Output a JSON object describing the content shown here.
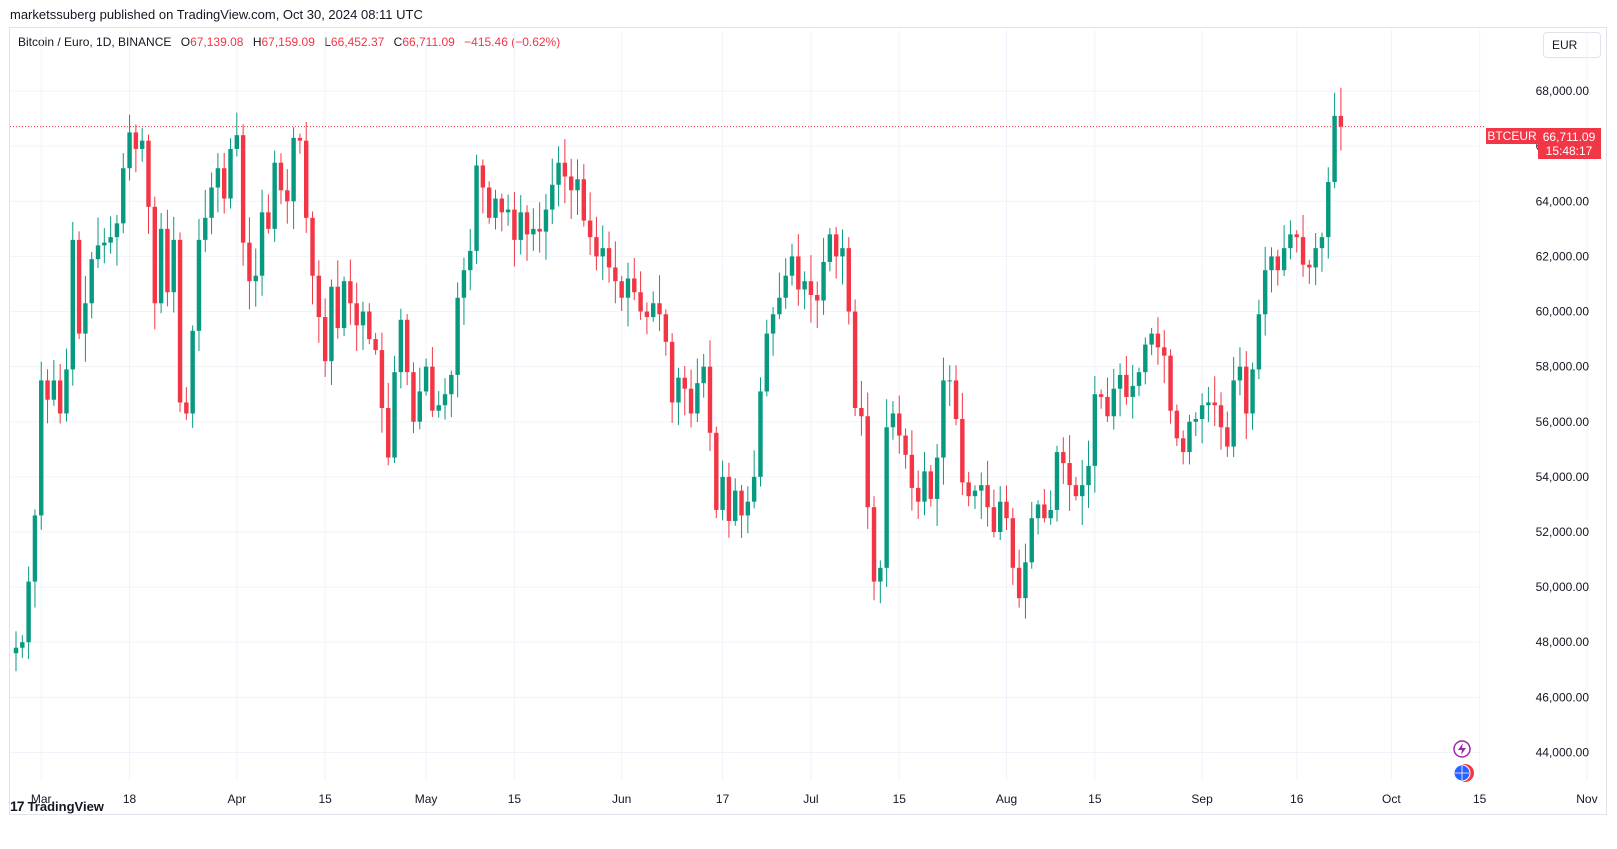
{
  "header": {
    "publisher_line": "marketssuberg published on TradingView.com, Oct 30, 2024 08:11 UTC"
  },
  "legend": {
    "symbol_line": "Bitcoin / Euro, 1D, BINANCE",
    "open_label": "O",
    "open": "67,139.08",
    "high_label": "H",
    "high": "67,159.09",
    "low_label": "L",
    "low": "66,452.37",
    "close_label": "C",
    "close": "66,711.09",
    "change": "−415.46 (−0.62%)"
  },
  "currency": "EUR",
  "price_tag": {
    "symbol": "BTCEUR",
    "price": "66,711.09",
    "countdown": "15:48:17"
  },
  "brand": {
    "logo": "17",
    "name": "TradingView"
  },
  "colors": {
    "up": "#089981",
    "down": "#f23645",
    "grid": "#f0f3fa",
    "text": "#131722"
  },
  "icons": [
    "lightning-icon",
    "globe-icon"
  ],
  "chart_data": {
    "type": "candlestick",
    "symbol": "BTCEUR",
    "interval": "1D",
    "ylim": [
      43000,
      69200
    ],
    "yticks": [
      "44,000.00",
      "46,000.00",
      "48,000.00",
      "50,000.00",
      "52,000.00",
      "54,000.00",
      "56,000.00",
      "58,000.00",
      "60,000.00",
      "62,000.00",
      "64,000.00",
      "66,000.00",
      "68,000.00"
    ],
    "ytick_values": [
      44000,
      46000,
      48000,
      50000,
      52000,
      54000,
      56000,
      58000,
      60000,
      62000,
      64000,
      66000,
      68000
    ],
    "xticks": [
      {
        "label": "Mar",
        "day": 4
      },
      {
        "label": "18",
        "day": 18
      },
      {
        "label": "Apr",
        "day": 35
      },
      {
        "label": "15",
        "day": 49
      },
      {
        "label": "May",
        "day": 65
      },
      {
        "label": "15",
        "day": 79
      },
      {
        "label": "Jun",
        "day": 96
      },
      {
        "label": "17",
        "day": 112
      },
      {
        "label": "Jul",
        "day": 126
      },
      {
        "label": "15",
        "day": 140
      },
      {
        "label": "Aug",
        "day": 157
      },
      {
        "label": "15",
        "day": 171
      },
      {
        "label": "Sep",
        "day": 188
      },
      {
        "label": "16",
        "day": 203
      },
      {
        "label": "Oct",
        "day": 218
      },
      {
        "label": "15",
        "day": 232
      },
      {
        "label": "Nov",
        "day": 249
      }
    ],
    "last_price": 66711.09,
    "closes": [
      47800,
      48000,
      50200,
      52600,
      57500,
      56800,
      57500,
      56300,
      57900,
      62600,
      59200,
      60300,
      61900,
      62400,
      62500,
      62700,
      63200,
      65200,
      66500,
      65900,
      66200,
      63800,
      60300,
      63000,
      60700,
      62600,
      56700,
      56300,
      59300,
      62600,
      63400,
      64500,
      65200,
      64100,
      65900,
      66400,
      62500,
      61100,
      61300,
      63600,
      63000,
      65400,
      64400,
      64000,
      66300,
      66200,
      63400,
      61300,
      59800,
      58200,
      60900,
      59400,
      61100,
      60300,
      59500,
      60000,
      59000,
      58600,
      56500,
      54700,
      57800,
      59700,
      57800,
      56000,
      57100,
      58000,
      56400,
      56600,
      57000,
      57700,
      60500,
      61500,
      62200,
      65300,
      64500,
      63400,
      64100,
      63600,
      63700,
      62600,
      63600,
      62800,
      63000,
      62900,
      63700,
      64600,
      65400,
      64900,
      64400,
      64800,
      63300,
      62700,
      62000,
      62300,
      61600,
      61100,
      60500,
      61200,
      60700,
      60000,
      59800,
      60300,
      59900,
      58900,
      56700,
      57600,
      57200,
      56300,
      57400,
      58000,
      55600,
      52800,
      54000,
      52400,
      53500,
      52600,
      53100,
      54000,
      57100,
      59200,
      59900,
      60500,
      61300,
      62000,
      60800,
      61100,
      60600,
      60400,
      61800,
      62800,
      62000,
      62300,
      60000,
      56500,
      56200,
      52900,
      50200,
      50700,
      55800,
      56300,
      55500,
      54800,
      53600,
      53100,
      54200,
      53200,
      54700,
      57500,
      57500,
      56100,
      53800,
      53300,
      53500,
      53700,
      52900,
      52000,
      53100,
      52500,
      50700,
      49600,
      50900,
      52500,
      53000,
      52500,
      52800,
      54900,
      54500,
      53700,
      53300,
      53700,
      54400,
      57000,
      56900,
      56200,
      57200,
      57700,
      56900,
      57300,
      57800,
      58800,
      59200,
      58700,
      58400,
      56400,
      55400,
      54900,
      56000,
      56100,
      56600,
      56700,
      56600,
      55800,
      55100,
      57500,
      58000,
      56300,
      57900,
      59900,
      61500,
      62000,
      61500,
      62300,
      62800,
      62700,
      61700,
      61600,
      62300,
      62700,
      64700,
      67100,
      66711
    ]
  }
}
